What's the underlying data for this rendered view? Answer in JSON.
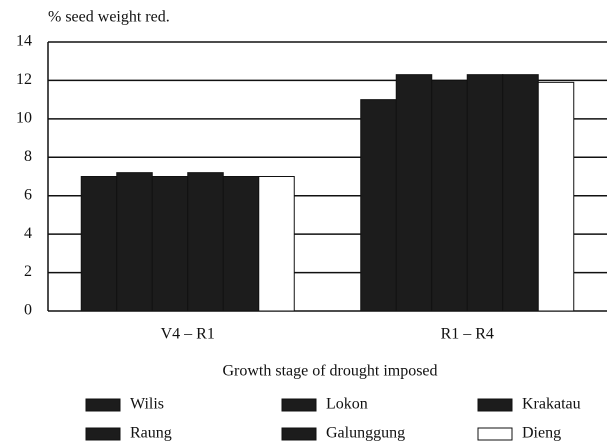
{
  "chart_data": {
    "type": "bar",
    "y_label": "% seed weight red.",
    "x_label": "Growth stage of drought imposed",
    "categories": [
      "V4 – R1",
      "R1 – R4"
    ],
    "series": [
      {
        "name": "Wilis",
        "color": "#1c1c1c",
        "values": [
          7.0,
          11.0
        ]
      },
      {
        "name": "Raung",
        "color": "#1c1c1c",
        "values": [
          7.2,
          12.3
        ]
      },
      {
        "name": "Lokon",
        "color": "#1c1c1c",
        "values": [
          7.0,
          12.0
        ]
      },
      {
        "name": "Galunggung",
        "color": "#1c1c1c",
        "values": [
          7.2,
          12.3
        ]
      },
      {
        "name": "Krakatau",
        "color": "#1c1c1c",
        "values": [
          7.0,
          12.3
        ]
      },
      {
        "name": "Dieng",
        "color": "#ffffff",
        "values": [
          7.0,
          11.9
        ]
      }
    ],
    "ylim": [
      0,
      14
    ],
    "yticks": [
      0,
      2,
      4,
      6,
      8,
      10,
      12,
      14
    ],
    "grid": true
  }
}
